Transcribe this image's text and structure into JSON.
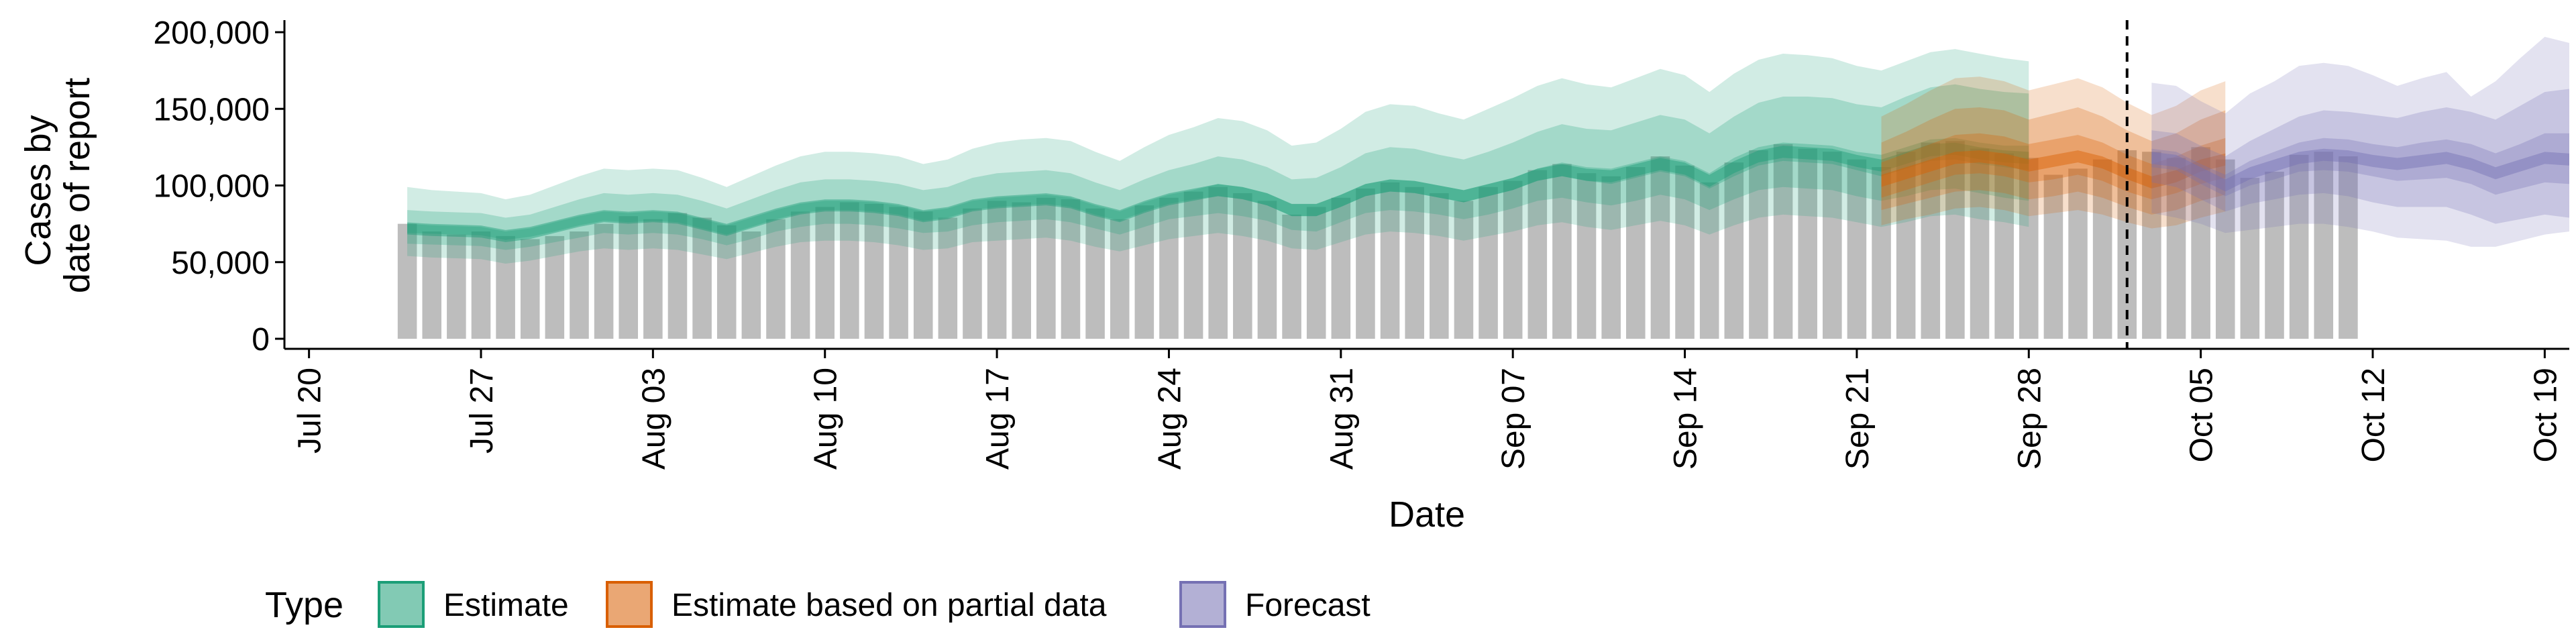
{
  "chart_data": {
    "type": "area",
    "xlabel": "Date",
    "ylabel": [
      "Cases by",
      "date of report"
    ],
    "ylim": [
      0,
      200000
    ],
    "y_ticks": [
      0,
      50000,
      100000,
      150000,
      200000
    ],
    "y_tick_labels": [
      "0",
      "50,000",
      "100,000",
      "150,000",
      "200,000"
    ],
    "x_ticks": [
      "2020-07-20",
      "2020-07-27",
      "2020-08-03",
      "2020-08-10",
      "2020-08-17",
      "2020-08-24",
      "2020-08-31",
      "2020-09-07",
      "2020-09-14",
      "2020-09-21",
      "2020-09-28",
      "2020-10-05",
      "2020-10-12",
      "2020-10-19"
    ],
    "x_tick_labels": [
      "Jul 20",
      "Jul 27",
      "Aug 03",
      "Aug 10",
      "Aug 17",
      "Aug 24",
      "Aug 31",
      "Sep 07",
      "Sep 14",
      "Sep 21",
      "Sep 28",
      "Oct 05",
      "Oct 12",
      "Oct 19"
    ],
    "xlim": [
      "2020-07-19",
      "2020-10-20"
    ],
    "forecast_cutoff": "2020-10-02",
    "grid": false,
    "legend": {
      "title": "Type",
      "position": "bottom",
      "entries": [
        {
          "label": "Estimate",
          "color": "#1b9e77"
        },
        {
          "label": "Estimate based on partial data",
          "color": "#d95f02"
        },
        {
          "label": "Forecast",
          "color": "#7570b3"
        }
      ]
    },
    "bars": {
      "name": "Reported cases",
      "color": "#bdbdbd",
      "start_date": "2020-07-24",
      "values": [
        75000,
        70000,
        68000,
        70000,
        67000,
        65000,
        67000,
        70000,
        75000,
        80000,
        78000,
        82000,
        79000,
        74000,
        70000,
        78000,
        83000,
        86000,
        89000,
        88000,
        86000,
        83000,
        79000,
        85000,
        90000,
        89000,
        92000,
        91000,
        85000,
        78000,
        87000,
        92000,
        96000,
        99000,
        95000,
        90000,
        81000,
        86000,
        92000,
        98000,
        102000,
        99000,
        95000,
        90000,
        99000,
        103000,
        110000,
        114000,
        108000,
        106000,
        112000,
        119000,
        113000,
        102000,
        115000,
        123000,
        127000,
        124000,
        122000,
        117000,
        112000,
        122000,
        128000,
        129000,
        124000,
        121000,
        118000,
        107000,
        111000,
        117000,
        123000,
        122000,
        118000,
        125000,
        117000,
        105000,
        109000,
        120000,
        122000,
        119000
      ]
    },
    "series": [
      {
        "name": "Estimate",
        "color": "#1b9e77",
        "start_date": "2020-07-24",
        "median": [
          72000,
          71000,
          70500,
          70000,
          67000,
          69000,
          73000,
          77000,
          80000,
          79000,
          80000,
          79000,
          75000,
          71000,
          76000,
          81000,
          85000,
          87000,
          87000,
          86000,
          84000,
          80000,
          82000,
          87000,
          89000,
          90000,
          91000,
          89000,
          84000,
          80000,
          86000,
          91000,
          94000,
          97000,
          95000,
          91000,
          84000,
          84000,
          90000,
          97000,
          100000,
          99000,
          96000,
          93000,
          97000,
          101000,
          107000,
          110000,
          107000,
          106000,
          110000,
          114000,
          111000,
          103000,
          112000,
          119000,
          122000,
          121000,
          120000,
          116000,
          113000,
          118000,
          123000,
          124000,
          121000,
          119000,
          118000
        ],
        "lower_50": [
          69000,
          68500,
          68000,
          67500,
          64500,
          66500,
          70000,
          74000,
          77000,
          76000,
          77000,
          76000,
          72000,
          68000,
          73000,
          78000,
          82000,
          84000,
          84000,
          83000,
          81000,
          77000,
          79000,
          84000,
          86000,
          87000,
          88000,
          86000,
          81000,
          77000,
          83000,
          88000,
          91000,
          93000,
          91000,
          87000,
          80000,
          80000,
          86000,
          93000,
          96000,
          95000,
          92000,
          89000,
          93000,
          97000,
          103000,
          106000,
          103000,
          101000,
          105000,
          109000,
          106000,
          98000,
          106000,
          113000,
          116000,
          115000,
          114000,
          110000,
          106000,
          111000,
          116000,
          117000,
          114000,
          112000,
          110000
        ],
        "upper_50": [
          75000,
          74000,
          73500,
          73000,
          70000,
          72000,
          76000,
          80000,
          83000,
          82000,
          83000,
          82000,
          78000,
          74000,
          79000,
          84000,
          88000,
          90000,
          90000,
          89000,
          87000,
          83000,
          85000,
          90000,
          92000,
          93000,
          94000,
          92000,
          87000,
          83000,
          89000,
          94000,
          97000,
          101000,
          99000,
          95000,
          88000,
          88000,
          94000,
          101000,
          104000,
          103000,
          100000,
          97000,
          101000,
          105000,
          111000,
          115000,
          112000,
          111000,
          115000,
          119000,
          116000,
          108000,
          118000,
          125000,
          128000,
          127000,
          126000,
          122000,
          120000,
          125000,
          130000,
          131000,
          128000,
          126000,
          126000
        ],
        "lower_90": [
          62000,
          61500,
          61000,
          60500,
          58000,
          60000,
          63000,
          66000,
          69000,
          68000,
          69000,
          68000,
          65000,
          61000,
          65000,
          70000,
          73000,
          75000,
          75000,
          74000,
          72000,
          69000,
          70000,
          74000,
          76000,
          77000,
          78000,
          76000,
          72000,
          68000,
          73000,
          78000,
          80000,
          82000,
          80000,
          77000,
          71000,
          70000,
          76000,
          82000,
          84000,
          83000,
          81000,
          78000,
          81000,
          85000,
          90000,
          92000,
          89000,
          87000,
          90000,
          94000,
          91000,
          84000,
          91000,
          97000,
          99000,
          98000,
          97000,
          93000,
          90000,
          93000,
          97000,
          98000,
          95000,
          92000,
          90000
        ],
        "upper_90": [
          84000,
          83000,
          82500,
          82000,
          79000,
          81000,
          86000,
          91000,
          95000,
          94000,
          95000,
          94000,
          90000,
          85000,
          91000,
          97000,
          102000,
          104000,
          104000,
          103000,
          101000,
          97000,
          99000,
          105000,
          108000,
          109000,
          110000,
          108000,
          102000,
          97000,
          104000,
          110000,
          114000,
          119000,
          117000,
          112000,
          104000,
          105000,
          112000,
          121000,
          125000,
          124000,
          120000,
          117000,
          122000,
          128000,
          135000,
          140000,
          137000,
          136000,
          141000,
          146000,
          143000,
          134000,
          145000,
          154000,
          158000,
          158000,
          157000,
          153000,
          151000,
          158000,
          164000,
          166000,
          163000,
          161000,
          160000
        ],
        "lower_ci": [
          54000,
          53000,
          52500,
          52000,
          49000,
          51000,
          54000,
          57000,
          59000,
          58000,
          59000,
          58000,
          55000,
          52000,
          56000,
          60000,
          63000,
          64000,
          64000,
          63000,
          61000,
          58000,
          59000,
          63000,
          64000,
          65000,
          66000,
          64000,
          60000,
          57000,
          61000,
          65000,
          67000,
          69000,
          67000,
          64000,
          59000,
          58000,
          63000,
          68000,
          70000,
          69000,
          67000,
          64000,
          67000,
          70000,
          74000,
          76000,
          73000,
          71000,
          74000,
          77000,
          74000,
          68000,
          74000,
          79000,
          81000,
          80000,
          79000,
          76000,
          73000,
          76000,
          80000,
          81000,
          78000,
          76000,
          73000
        ],
        "upper_ci": [
          99000,
          97000,
          96000,
          95000,
          91000,
          94000,
          100000,
          106000,
          111000,
          110000,
          111000,
          110000,
          105000,
          99000,
          106000,
          113000,
          119000,
          122000,
          122000,
          121000,
          119000,
          114000,
          117000,
          124000,
          128000,
          130000,
          131000,
          129000,
          122000,
          116000,
          125000,
          133000,
          138000,
          144000,
          142000,
          136000,
          126000,
          128000,
          137000,
          148000,
          153000,
          152000,
          147000,
          143000,
          150000,
          157000,
          165000,
          170000,
          166000,
          164000,
          170000,
          176000,
          172000,
          161000,
          173000,
          182000,
          186000,
          185000,
          183000,
          178000,
          175000,
          181000,
          187000,
          189000,
          186000,
          183000,
          181000
        ]
      },
      {
        "name": "Estimate based on partial data",
        "color": "#d95f02",
        "start_date": "2020-09-22",
        "median": [
          103000,
          108000,
          113000,
          118000,
          119000,
          117000,
          113000,
          116000,
          119000,
          115000,
          108000,
          102000,
          106000,
          113000,
          117000
        ],
        "lower_50": [
          92000,
          97000,
          102000,
          107000,
          108000,
          106000,
          102000,
          104000,
          107000,
          103000,
          96000,
          91000,
          95000,
          101000,
          105000
        ],
        "upper_50": [
          115000,
          121000,
          127000,
          133000,
          134000,
          132000,
          127000,
          130000,
          133000,
          128000,
          120000,
          114000,
          119000,
          126000,
          131000
        ],
        "lower_90": [
          84000,
          88000,
          92000,
          96000,
          97000,
          95000,
          91000,
          93000,
          96000,
          92000,
          86000,
          81000,
          84000,
          90000,
          94000
        ],
        "upper_90": [
          128000,
          135000,
          143000,
          150000,
          151000,
          149000,
          143000,
          147000,
          151000,
          145000,
          136000,
          129000,
          134000,
          143000,
          149000
        ],
        "lower_ci": [
          74000,
          78000,
          81000,
          85000,
          86000,
          84000,
          80000,
          82000,
          84000,
          81000,
          76000,
          72000,
          74000,
          79000,
          83000
        ],
        "upper_ci": [
          145000,
          153000,
          162000,
          170000,
          171000,
          168000,
          162000,
          166000,
          170000,
          164000,
          154000,
          146000,
          152000,
          162000,
          168000
        ]
      },
      {
        "name": "Forecast",
        "color": "#7570b3",
        "start_date": "2020-10-03",
        "median": [
          118000,
          116000,
          108000,
          100000,
          108000,
          113000,
          118000,
          120000,
          119000,
          116000,
          114000,
          116000,
          118000,
          114000,
          108000,
          113000,
          118000,
          117000
        ],
        "lower_50": [
          112000,
          110000,
          101000,
          93000,
          100000,
          104000,
          109000,
          110000,
          109000,
          106000,
          103000,
          104000,
          105000,
          101000,
          94000,
          98000,
          102000,
          101000
        ],
        "upper_50": [
          124000,
          122000,
          114000,
          107000,
          116000,
          122000,
          128000,
          131000,
          130000,
          127000,
          125000,
          128000,
          130000,
          127000,
          121000,
          127000,
          134000,
          134000
        ],
        "lower_90": [
          102000,
          99000,
          91000,
          83000,
          88000,
          91000,
          94000,
          95000,
          93000,
          89000,
          86000,
          86000,
          86000,
          81000,
          75000,
          78000,
          81000,
          79000
        ],
        "upper_90": [
          136000,
          134000,
          126000,
          119000,
          129000,
          137000,
          145000,
          149000,
          148000,
          146000,
          144000,
          148000,
          151000,
          148000,
          143000,
          152000,
          161000,
          163000
        ],
        "lower_ci": [
          82000,
          79000,
          75000,
          69000,
          71000,
          73000,
          75000,
          75000,
          73000,
          70000,
          66000,
          65000,
          64000,
          60000,
          60000,
          64000,
          68000,
          70000
        ],
        "upper_ci": [
          167000,
          165000,
          155000,
          147000,
          160000,
          168000,
          178000,
          180000,
          178000,
          172000,
          165000,
          170000,
          174000,
          158000,
          168000,
          183000,
          197000,
          193000
        ]
      }
    ]
  }
}
